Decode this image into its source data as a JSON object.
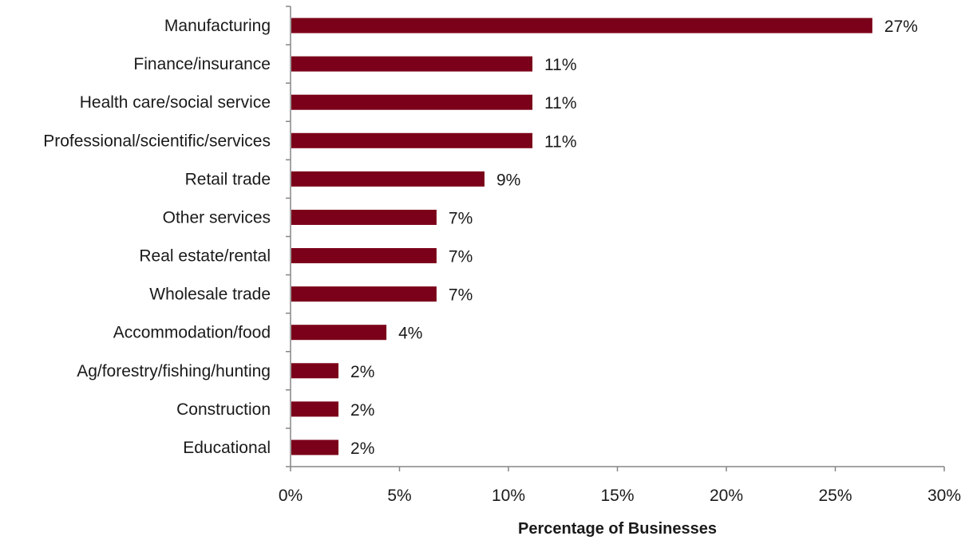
{
  "chart_data": {
    "type": "bar",
    "orientation": "horizontal",
    "categories": [
      "Manufacturing",
      "Finance/insurance",
      "Health care/social service",
      "Professional/scientific/services",
      "Retail trade",
      "Other services",
      "Real estate/rental",
      "Wholesale trade",
      "Accommodation/food",
      "Ag/forestry/fishing/hunting",
      "Construction",
      "Educational"
    ],
    "values": [
      26.7,
      11.1,
      11.1,
      11.1,
      8.9,
      6.7,
      6.7,
      6.7,
      4.4,
      2.2,
      2.2,
      2.2
    ],
    "data_labels": [
      "27%",
      "11%",
      "11%",
      "11%",
      "9%",
      "7%",
      "7%",
      "7%",
      "4%",
      "2%",
      "2%",
      "2%"
    ],
    "xlabel": "Percentage of Businesses",
    "ylabel": "",
    "xlim": [
      0,
      30
    ],
    "xticks": [
      0,
      5,
      10,
      15,
      20,
      25,
      30
    ],
    "xtick_labels": [
      "0%",
      "5%",
      "10%",
      "15%",
      "20%",
      "25%",
      "30%"
    ],
    "bar_color": "#7b0019",
    "axis_color": "#868686",
    "grid": false,
    "legend": "none"
  }
}
